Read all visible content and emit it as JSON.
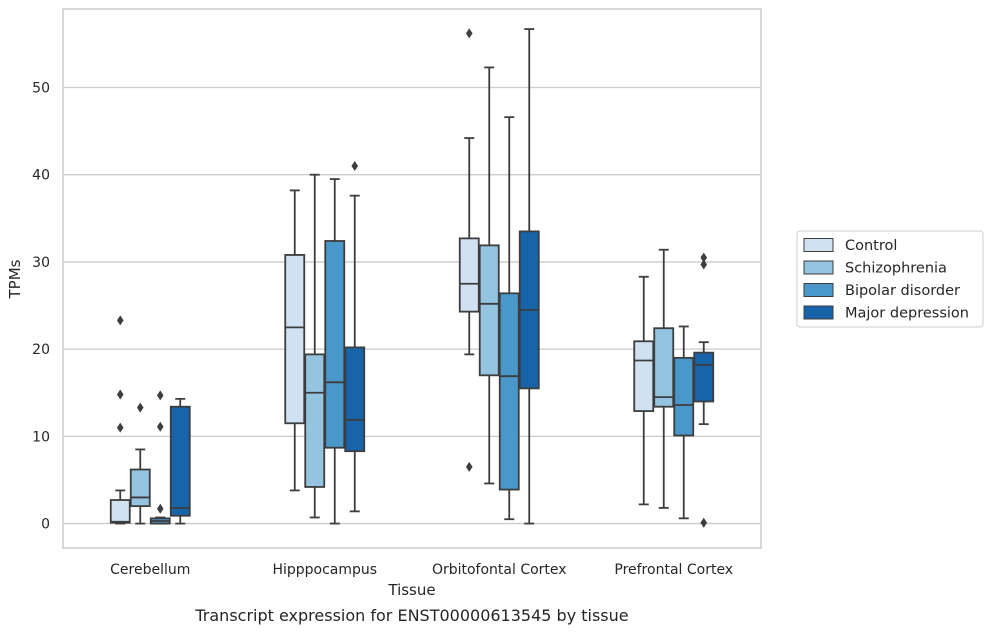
{
  "caption": "Transcript expression for ENST00000613545 by tissue",
  "chart_data": {
    "type": "box",
    "xlabel": "Tissue",
    "ylabel": "TPMs",
    "ylim": [
      -2.8,
      59
    ],
    "yticks": [
      0,
      10,
      20,
      30,
      40,
      50
    ],
    "grid": "horizontal",
    "legend_position": "outside-right",
    "categories": [
      "Cerebellum",
      "Hipppocampus",
      "Orbitofontal Cortex",
      "Prefrontal Cortex"
    ],
    "series": [
      {
        "name": "Control",
        "color": "#d0e1f2",
        "boxes": [
          {
            "whislo": 0,
            "q1": 0.1,
            "med": 0.2,
            "q3": 2.7,
            "whishi": 3.8,
            "fliers": [
              11.0,
              14.8,
              23.3
            ]
          },
          {
            "whislo": 3.8,
            "q1": 11.5,
            "med": 22.5,
            "q3": 30.8,
            "whishi": 38.2,
            "fliers": []
          },
          {
            "whislo": 19.4,
            "q1": 24.3,
            "med": 27.5,
            "q3": 32.7,
            "whishi": 44.2,
            "fliers": [
              6.5,
              56.2
            ]
          },
          {
            "whislo": 2.2,
            "q1": 12.9,
            "med": 18.7,
            "q3": 20.9,
            "whishi": 28.3,
            "fliers": []
          }
        ]
      },
      {
        "name": "Schizophrenia",
        "color": "#94c4df",
        "boxes": [
          {
            "whislo": 0,
            "q1": 2.0,
            "med": 3.0,
            "q3": 6.2,
            "whishi": 8.5,
            "fliers": [
              13.3
            ]
          },
          {
            "whislo": 0.7,
            "q1": 4.2,
            "med": 15.0,
            "q3": 19.4,
            "whishi": 40.0,
            "fliers": []
          },
          {
            "whislo": 4.6,
            "q1": 17.0,
            "med": 25.2,
            "q3": 31.9,
            "whishi": 52.3,
            "fliers": []
          },
          {
            "whislo": 1.8,
            "q1": 13.4,
            "med": 14.5,
            "q3": 22.4,
            "whishi": 31.4,
            "fliers": []
          }
        ]
      },
      {
        "name": "Bipolar disorder",
        "color": "#4a98c9",
        "boxes": [
          {
            "whislo": 0,
            "q1": 0,
            "med": 0.3,
            "q3": 0.6,
            "whishi": 0.7,
            "fliers": [
              1.7,
              11.1,
              14.7
            ]
          },
          {
            "whislo": 0,
            "q1": 8.7,
            "med": 16.2,
            "q3": 32.4,
            "whishi": 39.5,
            "fliers": []
          },
          {
            "whislo": 0.5,
            "q1": 3.9,
            "med": 16.9,
            "q3": 26.4,
            "whishi": 46.6,
            "fliers": []
          },
          {
            "whislo": 0.6,
            "q1": 10.1,
            "med": 13.6,
            "q3": 19.0,
            "whishi": 22.6,
            "fliers": []
          }
        ]
      },
      {
        "name": "Major depression",
        "color": "#1764ab",
        "boxes": [
          {
            "whislo": 0,
            "q1": 0.9,
            "med": 1.8,
            "q3": 13.4,
            "whishi": 14.3,
            "fliers": []
          },
          {
            "whislo": 1.4,
            "q1": 8.3,
            "med": 11.9,
            "q3": 20.2,
            "whishi": 37.6,
            "fliers": [
              41.0
            ]
          },
          {
            "whislo": 0,
            "q1": 15.5,
            "med": 24.5,
            "q3": 33.5,
            "whishi": 56.7,
            "fliers": []
          },
          {
            "whislo": 11.4,
            "q1": 14.0,
            "med": 18.2,
            "q3": 19.6,
            "whishi": 20.8,
            "fliers": [
              0.1,
              29.7,
              30.5
            ]
          }
        ]
      }
    ]
  }
}
